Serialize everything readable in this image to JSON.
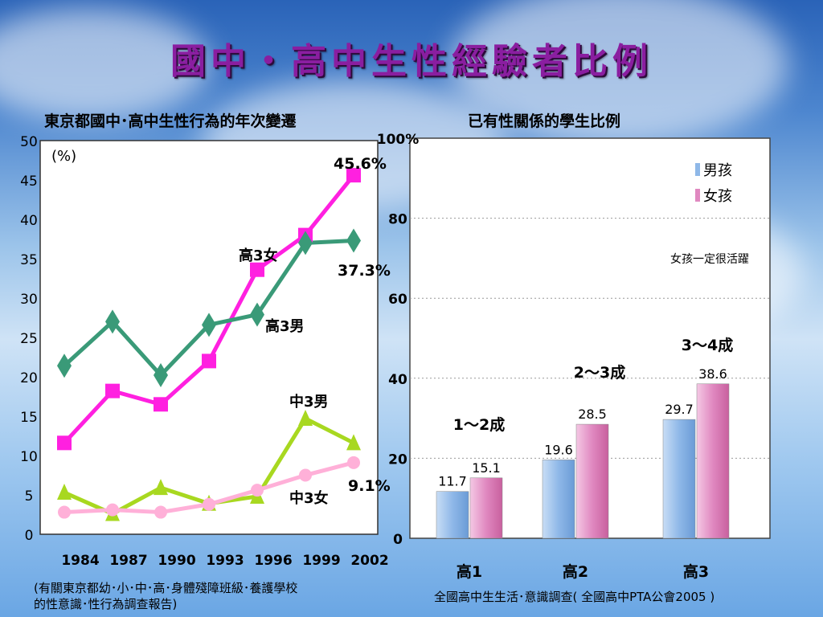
{
  "slide_title": "國中・高中生性經驗者比例",
  "colors": {
    "title_purple": "#8a1ea0",
    "girls_high": "#ff20e0",
    "boys_high": "#3a9a78",
    "boys_middle": "#a8d820",
    "girls_middle": "#ffb0d8",
    "bar_boys": "#8fb8e8",
    "bar_girls": "#e088c0"
  },
  "left_chart": {
    "title": "東京都國中･高中生性行為的年次變遷",
    "unit_label": "(%)",
    "source_note": [
      "(有關東京都幼･小･中･高･身體殘障班級･養護學校",
      "的性意識･性行為調查報告)"
    ]
  },
  "right_chart": {
    "title": "已有性關係的學生比例",
    "source_note": "全國高中生生活･意識調查( 全國高中PTA公會2005 )",
    "comment": "女孩一定很活躍"
  },
  "chart_data": [
    {
      "type": "line",
      "title": "東京都國中･高中生性行為的年次變遷",
      "ylabel": "(%)",
      "ylim": [
        0,
        50
      ],
      "yticks": [
        0,
        5,
        10,
        15,
        20,
        25,
        30,
        35,
        40,
        45,
        50
      ],
      "x": [
        "1984",
        "1987",
        "1990",
        "1993",
        "1996",
        "1999",
        "2002"
      ],
      "grid": false,
      "series": [
        {
          "name": "高3女",
          "marker": "square",
          "values": [
            11.6,
            18.2,
            16.5,
            22.0,
            33.6,
            38.0,
            45.6
          ],
          "end_label": "45.6%"
        },
        {
          "name": "高3男",
          "marker": "diamond",
          "values": [
            21.4,
            27.0,
            20.2,
            26.6,
            27.9,
            37.0,
            37.3
          ],
          "end_label": "37.3%"
        },
        {
          "name": "中3男",
          "marker": "triangle",
          "values": [
            5.3,
            2.6,
            5.9,
            3.9,
            4.8,
            14.7,
            11.6
          ],
          "end_label": ""
        },
        {
          "name": "中3女",
          "marker": "circle",
          "values": [
            2.8,
            3.1,
            2.8,
            3.8,
            5.6,
            7.5,
            9.1
          ],
          "end_label": "9.1%"
        }
      ]
    },
    {
      "type": "bar",
      "title": "已有性關係的學生比例",
      "categories": [
        "高1",
        "高2",
        "高3"
      ],
      "ylim": [
        0,
        100
      ],
      "yticks": [
        "0",
        "20",
        "40",
        "60",
        "80",
        "100%"
      ],
      "legend_position": "top-right",
      "grid": true,
      "series": [
        {
          "name": "男孩",
          "values": [
            11.7,
            19.6,
            29.7
          ]
        },
        {
          "name": "女孩",
          "values": [
            15.1,
            28.5,
            38.6
          ]
        }
      ],
      "annotations": [
        "1～2成",
        "2～3成",
        "3～4成"
      ]
    }
  ]
}
